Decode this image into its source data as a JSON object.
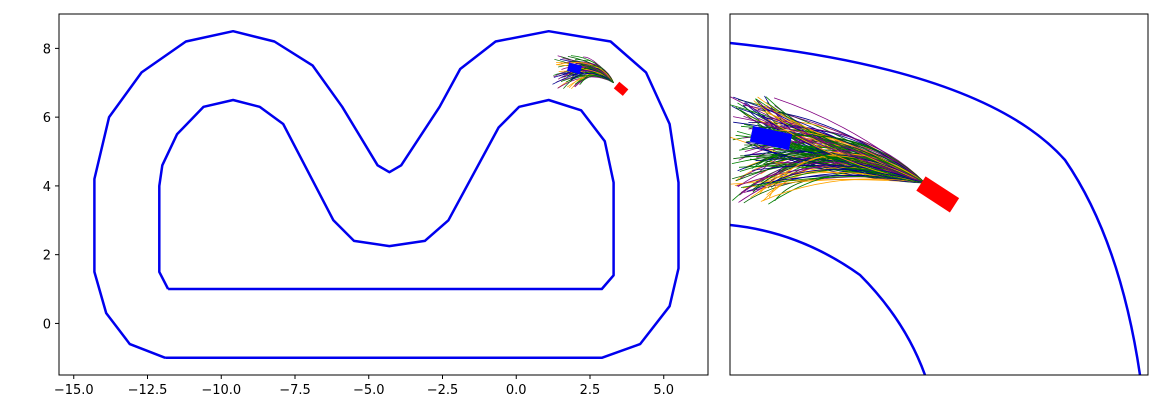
{
  "chart_data": [
    {
      "type": "line",
      "title": "",
      "xlabel": "",
      "ylabel": "",
      "xlim": [
        -15.5,
        6.5
      ],
      "ylim": [
        -1.5,
        9.0
      ],
      "xticks": [
        -15.0,
        -12.5,
        -10.0,
        -7.5,
        -5.0,
        -2.5,
        0.0,
        2.5,
        5.0
      ],
      "xtick_labels": [
        "−15.0",
        "−12.5",
        "−10.0",
        "−7.5",
        "−5.0",
        "−2.5",
        "0.0",
        "2.5",
        "5.0"
      ],
      "yticks": [
        0,
        2,
        4,
        6,
        8
      ],
      "ytick_labels": [
        "0",
        "2",
        "4",
        "6",
        "8"
      ],
      "grid": false,
      "legend": "none",
      "series": [
        {
          "role": "outer-boundary",
          "color": "#0000ee",
          "points": [
            [
              -11.9,
              -1.0
            ],
            [
              2.9,
              -1.0
            ],
            [
              4.2,
              -0.6
            ],
            [
              5.2,
              0.5
            ],
            [
              5.5,
              1.6
            ],
            [
              5.5,
              4.1
            ],
            [
              5.2,
              5.8
            ],
            [
              4.4,
              7.3
            ],
            [
              3.2,
              8.2
            ],
            [
              1.1,
              8.5
            ],
            [
              -0.7,
              8.2
            ],
            [
              -1.9,
              7.4
            ],
            [
              -2.6,
              6.3
            ],
            [
              -3.9,
              4.6
            ],
            [
              -4.3,
              4.4
            ],
            [
              -4.7,
              4.6
            ],
            [
              -5.9,
              6.3
            ],
            [
              -6.9,
              7.5
            ],
            [
              -8.2,
              8.2
            ],
            [
              -9.6,
              8.5
            ],
            [
              -11.2,
              8.2
            ],
            [
              -12.7,
              7.3
            ],
            [
              -13.8,
              6.0
            ],
            [
              -14.3,
              4.2
            ],
            [
              -14.3,
              1.5
            ],
            [
              -13.9,
              0.3
            ],
            [
              -13.1,
              -0.6
            ],
            [
              -11.9,
              -1.0
            ]
          ]
        },
        {
          "role": "inner-boundary",
          "color": "#0000ee",
          "points": [
            [
              -11.8,
              1.0
            ],
            [
              2.9,
              1.0
            ],
            [
              3.3,
              1.4
            ],
            [
              3.3,
              4.1
            ],
            [
              3.0,
              5.3
            ],
            [
              2.2,
              6.2
            ],
            [
              1.1,
              6.5
            ],
            [
              0.1,
              6.3
            ],
            [
              -0.6,
              5.7
            ],
            [
              -2.3,
              3.0
            ],
            [
              -3.1,
              2.4
            ],
            [
              -4.3,
              2.25
            ],
            [
              -5.5,
              2.4
            ],
            [
              -6.2,
              3.0
            ],
            [
              -7.9,
              5.8
            ],
            [
              -8.7,
              6.3
            ],
            [
              -9.6,
              6.5
            ],
            [
              -10.6,
              6.3
            ],
            [
              -11.5,
              5.5
            ],
            [
              -12.0,
              4.6
            ],
            [
              -12.1,
              4.0
            ],
            [
              -12.1,
              1.5
            ],
            [
              -11.8,
              1.0
            ]
          ]
        }
      ],
      "car_current_color": "#ff0000",
      "car_target_color": "#0000ff",
      "trajectory_colors": [
        "#ffa500",
        "#00008b",
        "#006400",
        "#800080",
        "#008000"
      ]
    },
    {
      "type": "line",
      "role": "zoomed-inset",
      "xticks": [],
      "yticks": [],
      "grid": false,
      "legend": "none",
      "boundary_color": "#0000ee",
      "car_current_color": "#ff0000",
      "car_target_color": "#0000ff",
      "trajectory_colors": [
        "#ffa500",
        "#00008b",
        "#006400",
        "#800080",
        "#008000"
      ]
    }
  ]
}
